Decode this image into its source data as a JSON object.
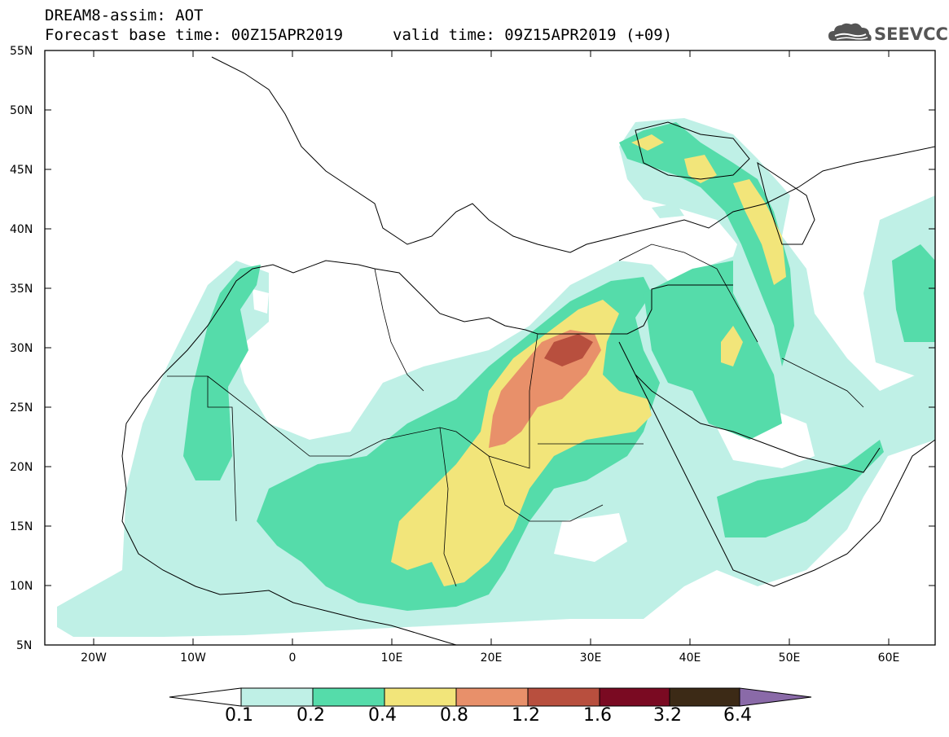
{
  "title": "DREAM8-assim: AOT",
  "forecast_base": "Forecast base time: 00Z15APR2019",
  "valid_time": "valid time: 09Z15APR2019 (+09)",
  "logo_text": "SEEVCCC",
  "lat_labels": [
    "55N",
    "50N",
    "45N",
    "40N",
    "35N",
    "30N",
    "25N",
    "20N",
    "15N",
    "10N",
    "5N"
  ],
  "lon_labels": [
    "20W",
    "10W",
    "0",
    "10E",
    "20E",
    "30E",
    "40E",
    "50E",
    "60E"
  ],
  "colorbar": {
    "labels": [
      "0.1",
      "0.2",
      "0.4",
      "0.8",
      "1.2",
      "1.6",
      "3.2",
      "6.4"
    ],
    "colors": [
      "#bff0e6",
      "#55dcaa",
      "#f2e57a",
      "#e8906a",
      "#b84f3e",
      "#7a0a22",
      "#3c2a16",
      "#8a6aa8"
    ]
  }
}
